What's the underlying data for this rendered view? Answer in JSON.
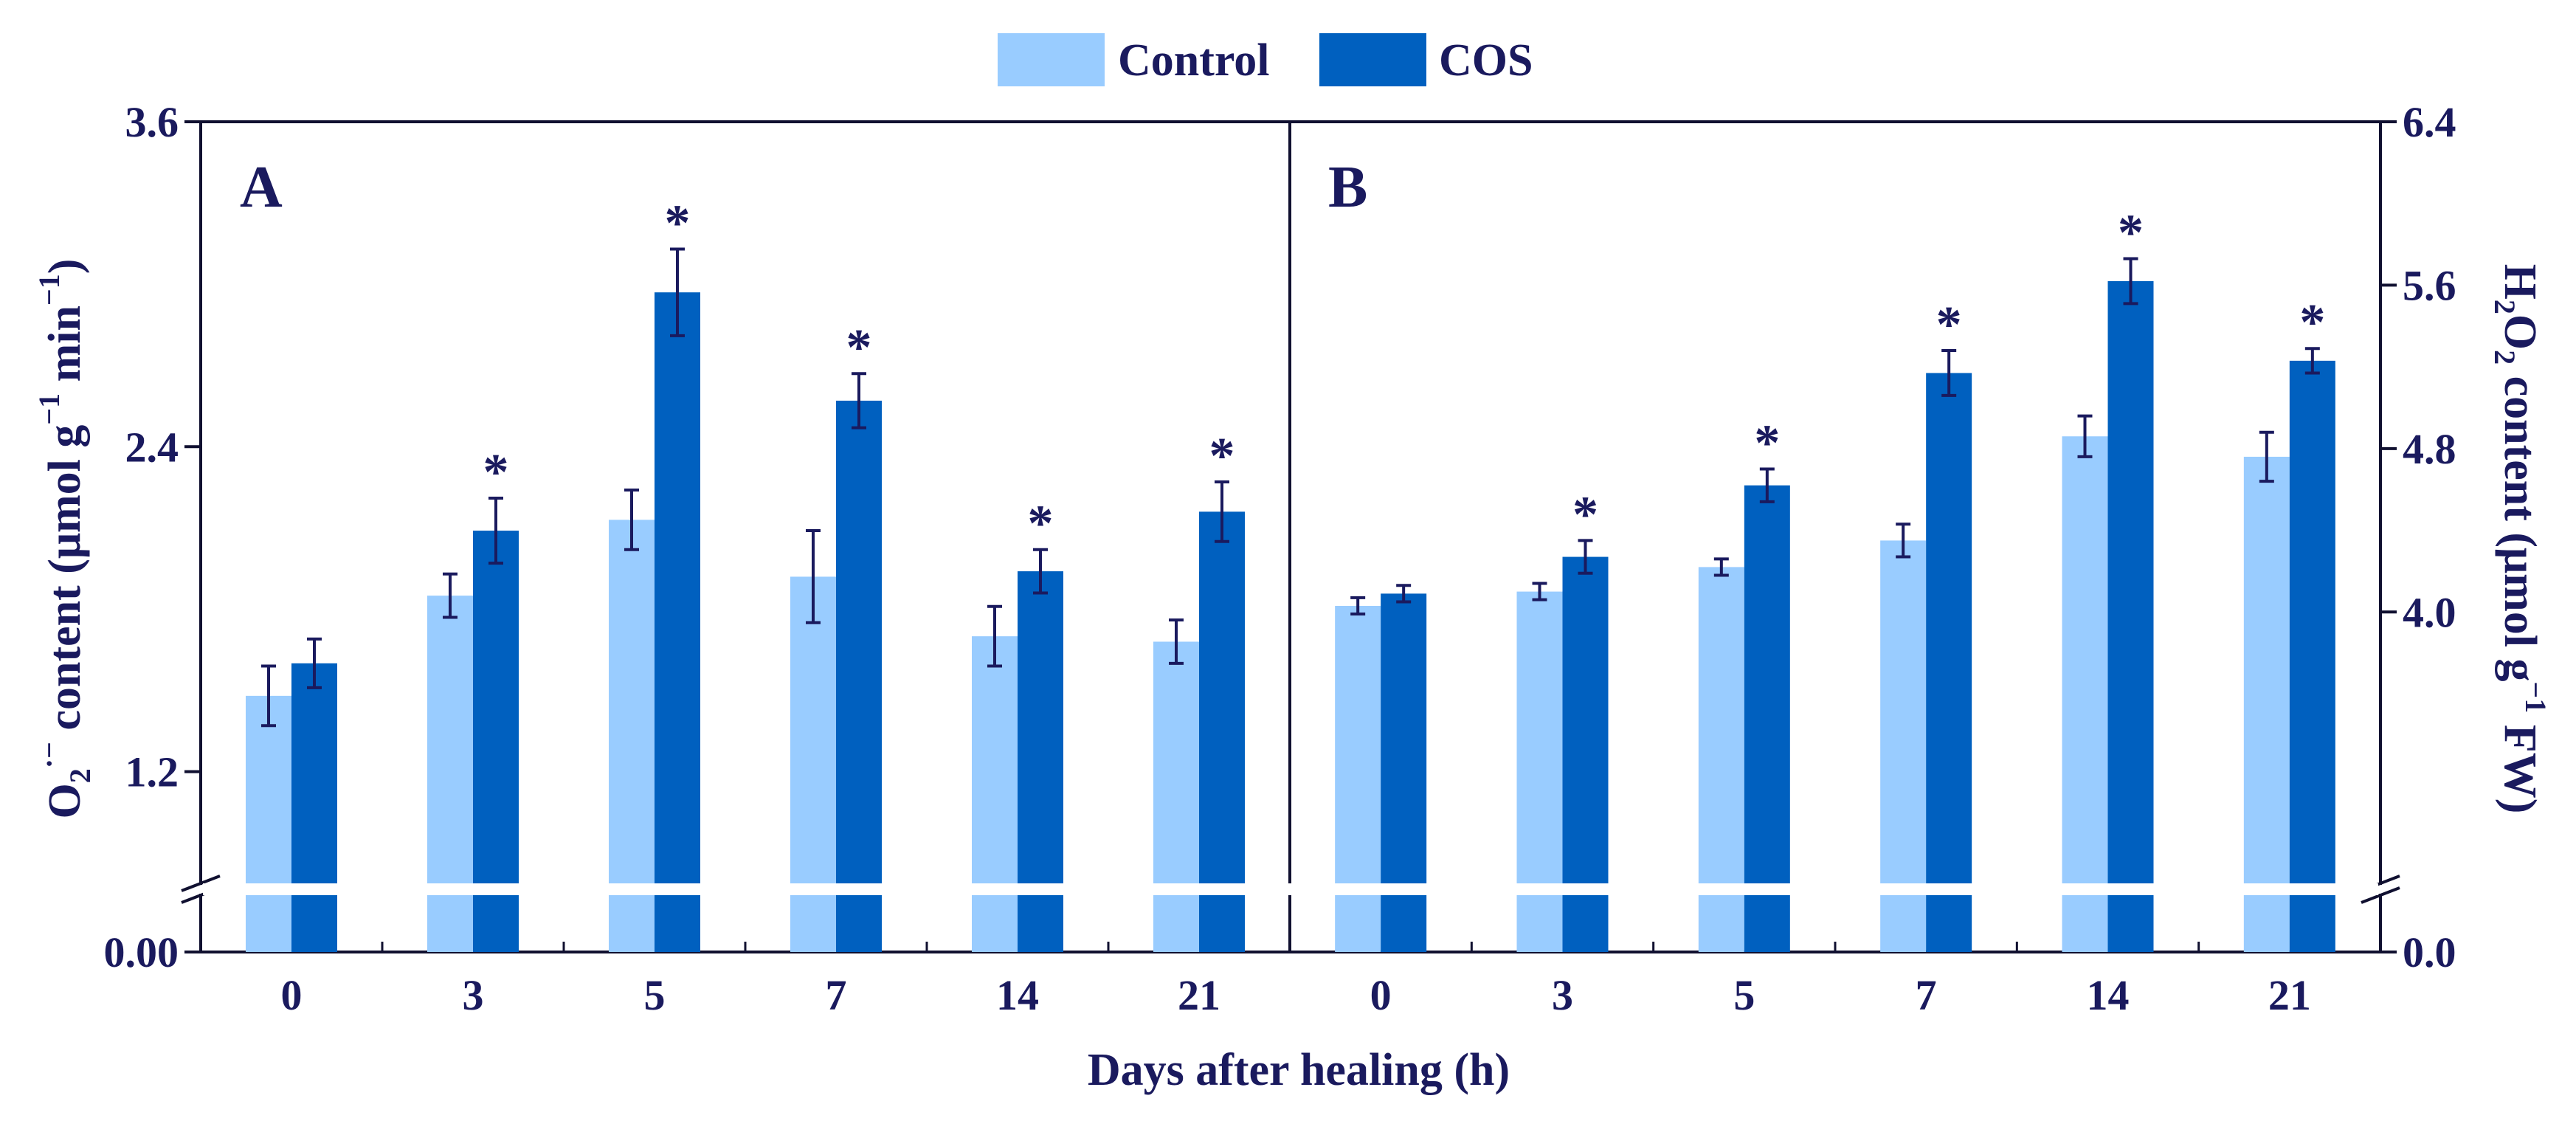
{
  "colors": {
    "control": "#99ccff",
    "cos": "#0060bf",
    "ink": "#1a1a5e",
    "frame": "#101030"
  },
  "legend": {
    "control_label": "Control",
    "cos_label": "COS"
  },
  "x_axis": {
    "label": "Days after healing (h)"
  },
  "chart_data": [
    {
      "type": "bar",
      "panel": "A",
      "categories": [
        "0",
        "3",
        "5",
        "7",
        "14",
        "21"
      ],
      "series": [
        {
          "name": "Control",
          "values": [
            1.48,
            1.85,
            2.13,
            1.92,
            1.7,
            1.68
          ],
          "errors": [
            0.11,
            0.08,
            0.11,
            0.17,
            0.11,
            0.08
          ]
        },
        {
          "name": "COS",
          "values": [
            1.6,
            2.09,
            2.97,
            2.57,
            1.94,
            2.16
          ],
          "errors": [
            0.09,
            0.12,
            0.16,
            0.1,
            0.08,
            0.11
          ]
        }
      ],
      "significance": [
        "",
        "*",
        "*",
        "*",
        "*",
        "*"
      ],
      "ylabel_parts": {
        "o": "O",
        "sub": "2",
        "sup": "·−",
        "rest": " content (μmol g",
        "sup2": "−1",
        "mid": " min",
        "sup3": "−1",
        "end": ")"
      },
      "ylim": [
        1.0,
        3.6
      ],
      "yticks": [
        "3.6",
        "2.4",
        "1.2"
      ],
      "ytick_values": [
        3.6,
        2.4,
        1.2
      ],
      "ybreak_value": "0.00",
      "axis_side": "left"
    },
    {
      "type": "bar",
      "panel": "B",
      "categories": [
        "0",
        "3",
        "5",
        "7",
        "14",
        "21"
      ],
      "series": [
        {
          "name": "Control",
          "values": [
            4.03,
            4.1,
            4.22,
            4.35,
            4.86,
            4.76
          ],
          "errors": [
            0.04,
            0.04,
            0.04,
            0.08,
            0.1,
            0.12
          ]
        },
        {
          "name": "COS",
          "values": [
            4.09,
            4.27,
            4.62,
            5.17,
            5.62,
            5.23
          ],
          "errors": [
            0.04,
            0.08,
            0.08,
            0.11,
            0.11,
            0.06
          ]
        }
      ],
      "significance": [
        "",
        "*",
        "*",
        "*",
        "*",
        "*"
      ],
      "ylabel_parts": {
        "h": "H",
        "sub": "2",
        "o": "O",
        "sub2": "2",
        "rest": " content (μmol g",
        "sup": "−1",
        "end": " FW)"
      },
      "ylim": [
        3.6,
        6.4
      ],
      "yticks": [
        "6.4",
        "5.6",
        "4.8",
        "4.0"
      ],
      "ytick_values": [
        6.4,
        5.6,
        4.8,
        4.0
      ],
      "ybreak_value": "0.0",
      "axis_side": "right"
    }
  ]
}
